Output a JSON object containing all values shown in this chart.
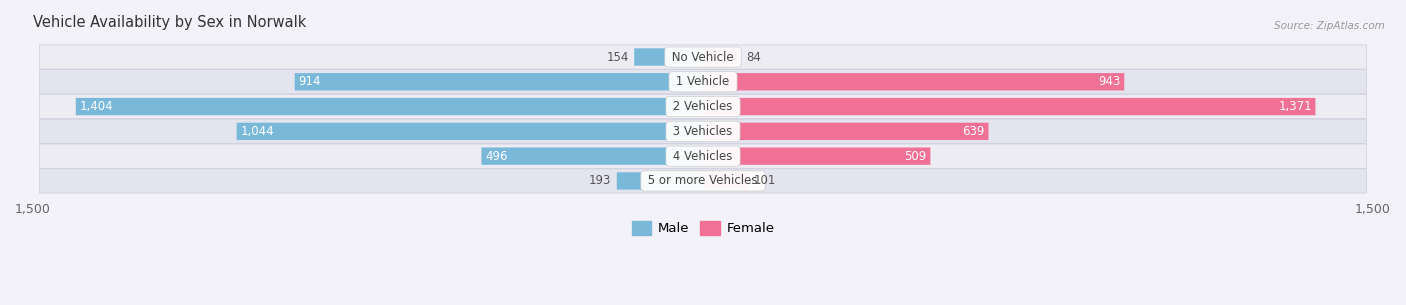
{
  "title": "Vehicle Availability by Sex in Norwalk",
  "source": "Source: ZipAtlas.com",
  "categories": [
    "No Vehicle",
    "1 Vehicle",
    "2 Vehicles",
    "3 Vehicles",
    "4 Vehicles",
    "5 or more Vehicles"
  ],
  "male_values": [
    154,
    914,
    1404,
    1044,
    496,
    193
  ],
  "female_values": [
    84,
    943,
    1371,
    639,
    509,
    101
  ],
  "male_color": "#7ab8d9",
  "female_color": "#f07096",
  "male_color_light": "#a8d0e8",
  "female_color_light": "#f4a0bb",
  "male_label": "Male",
  "female_label": "Female",
  "xlim": 1500,
  "title_fontsize": 10.5,
  "value_fontsize": 8.5,
  "cat_fontsize": 8.5,
  "axis_fontsize": 9,
  "bar_height": 0.68,
  "row_colors": [
    "#ececf2",
    "#e4e4ee"
  ],
  "bg_color": "#f2f2f8",
  "small_threshold": 300
}
